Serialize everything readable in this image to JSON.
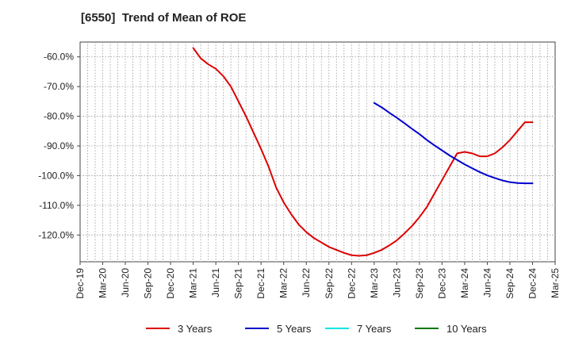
{
  "chart_data": {
    "type": "line",
    "title": "[6550]  Trend of Mean of ROE",
    "xlabel": "",
    "ylabel": "",
    "x_ticks": [
      "Dec-19",
      "Mar-20",
      "Jun-20",
      "Sep-20",
      "Dec-20",
      "Mar-21",
      "Jun-21",
      "Sep-21",
      "Dec-21",
      "Mar-22",
      "Jun-22",
      "Sep-22",
      "Dec-22",
      "Mar-23",
      "Jun-23",
      "Sep-23",
      "Dec-23",
      "Mar-24",
      "Jun-24",
      "Sep-24",
      "Dec-24",
      "Mar-25"
    ],
    "y_ticks": [
      -60,
      -70,
      -80,
      -90,
      -100,
      -110,
      -120
    ],
    "y_tick_labels": [
      "-60.0%",
      "-70.0%",
      "-80.0%",
      "-90.0%",
      "-100.0%",
      "-110.0%",
      "-120.0%"
    ],
    "ylim": [
      -129,
      -55
    ],
    "grid": true,
    "legend_position": "bottom",
    "series": [
      {
        "name": "3 Years",
        "color": "#dd0000",
        "x": [
          "Mar-21",
          "Apr-21",
          "May-21",
          "Jun-21",
          "Jul-21",
          "Aug-21",
          "Sep-21",
          "Oct-21",
          "Nov-21",
          "Dec-21",
          "Jan-22",
          "Feb-22",
          "Mar-22",
          "Apr-22",
          "May-22",
          "Jun-22",
          "Jul-22",
          "Aug-22",
          "Sep-22",
          "Oct-22",
          "Nov-22",
          "Dec-22",
          "Jan-23",
          "Feb-23",
          "Mar-23",
          "Apr-23",
          "May-23",
          "Jun-23",
          "Jul-23",
          "Aug-23",
          "Sep-23",
          "Oct-23",
          "Nov-23",
          "Dec-23",
          "Jan-24",
          "Feb-24",
          "Mar-24",
          "Apr-24",
          "May-24",
          "Jun-24",
          "Jul-24",
          "Aug-24",
          "Sep-24",
          "Oct-24",
          "Nov-24",
          "Dec-24"
        ],
        "values": [
          -57.0,
          -60.5,
          -62.5,
          -64.0,
          -66.5,
          -70.0,
          -75.0,
          -80.0,
          -85.5,
          -91.0,
          -97.0,
          -104.0,
          -109.0,
          -113.0,
          -116.5,
          -119.0,
          -121.0,
          -122.5,
          -124.0,
          -125.0,
          -126.0,
          -126.8,
          -127.0,
          -126.8,
          -126.0,
          -125.0,
          -123.5,
          -121.8,
          -119.5,
          -117.0,
          -114.0,
          -110.5,
          -106.0,
          -101.5,
          -97.0,
          -92.5,
          -92.0,
          -92.5,
          -93.5,
          -93.5,
          -92.5,
          -90.5,
          -88.0,
          -85.0,
          -82.0,
          -82.0
        ]
      },
      {
        "name": "5 Years",
        "color": "#0000cc",
        "x": [
          "Mar-23",
          "Apr-23",
          "May-23",
          "Jun-23",
          "Jul-23",
          "Aug-23",
          "Sep-23",
          "Oct-23",
          "Nov-23",
          "Dec-23",
          "Jan-24",
          "Feb-24",
          "Mar-24",
          "Apr-24",
          "May-24",
          "Jun-24",
          "Jul-24",
          "Aug-24",
          "Sep-24",
          "Oct-24",
          "Nov-24",
          "Dec-24"
        ],
        "values": [
          -75.5,
          -77.0,
          -78.8,
          -80.5,
          -82.3,
          -84.2,
          -86.0,
          -88.0,
          -89.8,
          -91.5,
          -93.2,
          -94.7,
          -96.2,
          -97.5,
          -98.8,
          -99.9,
          -100.8,
          -101.6,
          -102.2,
          -102.5,
          -102.6,
          -102.6
        ]
      },
      {
        "name": "7 Years",
        "color": "#00e5e5",
        "x": [],
        "values": []
      },
      {
        "name": "10 Years",
        "color": "#007700",
        "x": [],
        "values": []
      }
    ]
  }
}
